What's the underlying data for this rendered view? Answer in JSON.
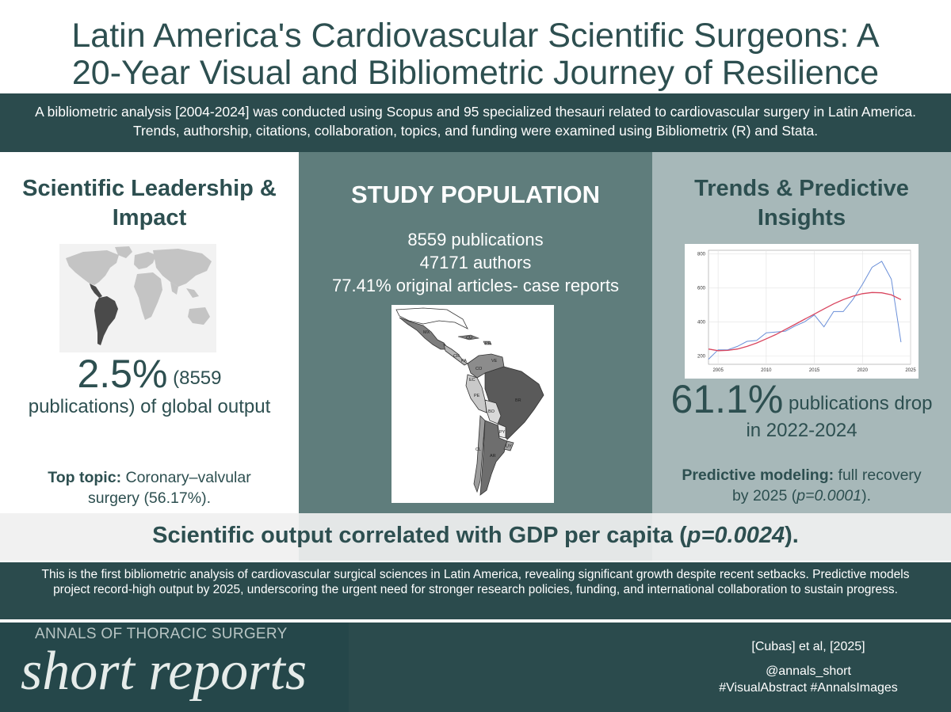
{
  "title": {
    "line1": "Latin America's Cardiovascular Scientific Surgeons: A",
    "line2": "20-Year Visual and Bibliometric Journey of Resilience"
  },
  "intro": "A bibliometric analysis [2004-2024] was conducted using Scopus and 95 specialized thesauri related to cardiovascular surgery in Latin America. Trends, authorship, citations, collaboration, topics, and funding were examined using Bibliometrix (R) and Stata.",
  "left": {
    "heading": "Scientific Leadership & Impact",
    "stat_number": "2.5%",
    "stat_text": " (8559 publications) of global output",
    "topic_label": "Top topic:",
    "topic_text": " Coronary–valvular surgery (56.17%)."
  },
  "middle": {
    "heading": "STUDY POPULATION",
    "line1": "8559 publications",
    "line2": "47171 authors",
    "line3": "77.41% original articles- case reports",
    "map_labels": [
      "MX",
      "CU",
      "PR",
      "CR",
      "PA",
      "VE",
      "CO",
      "EC",
      "PE",
      "BR",
      "BO",
      "PY",
      "UY",
      "AR",
      "CL"
    ]
  },
  "right": {
    "heading": "Trends & Predictive Insights",
    "stat_number": "61.1%",
    "stat_text": " publications drop in 2022-2024",
    "model_label": "Predictive modeling:",
    "model_text_pre": " full recovery by 2025 (",
    "model_p": "p=0.0001",
    "model_text_post": ")."
  },
  "band": {
    "text_pre": "Scientific output correlated with GDP per capita (",
    "p_value": "p=0.0024",
    "text_post": ")."
  },
  "conclusion": "This is the first bibliometric analysis of cardiovascular surgical sciences in Latin America, revealing significant growth despite recent setbacks. Predictive models project record-high output by 2025, underscoring the urgent need for stronger research policies, funding, and international collaboration to sustain progress.",
  "footer": {
    "journal_top": "ANNALS OF THORACIC SURGERY",
    "journal_main": "short reports",
    "citation": "[Cubas] et al, [2025]",
    "handle": "@annals_short",
    "hashtags": "#VisualAbstract #AnnalsImages"
  },
  "colors": {
    "dark_teal": "#2b4b4d",
    "mid_teal": "#5f7d7c",
    "light_teal": "#a7b8b9",
    "text_teal": "#2d4f50",
    "observed_line": "#6a8fd8",
    "fitted_line": "#d9465f"
  },
  "chart_data": {
    "type": "line",
    "x_ticks": [
      2005,
      2010,
      2015,
      2020,
      2025
    ],
    "y_ticks": [
      200,
      400,
      600,
      800
    ],
    "xlim": [
      2004,
      2025
    ],
    "ylim": [
      150,
      820
    ],
    "series": [
      {
        "x": [
          2004,
          2005,
          2006,
          2007,
          2008,
          2009,
          2010,
          2011,
          2012,
          2013,
          2014,
          2015,
          2016,
          2017,
          2018,
          2019,
          2020,
          2021,
          2022,
          2023,
          2024
        ],
        "values": [
          180,
          235,
          235,
          255,
          285,
          290,
          335,
          340,
          345,
          375,
          400,
          440,
          370,
          460,
          460,
          530,
          620,
          720,
          755,
          650,
          280
        ]
      },
      {
        "x": [
          2004,
          2005,
          2006,
          2007,
          2008,
          2009,
          2010,
          2011,
          2012,
          2013,
          2014,
          2015,
          2016,
          2017,
          2018,
          2019,
          2020,
          2021,
          2022,
          2023,
          2024
        ],
        "values": [
          240,
          230,
          232,
          240,
          255,
          275,
          300,
          325,
          355,
          385,
          415,
          445,
          475,
          505,
          530,
          550,
          565,
          572,
          570,
          558,
          530
        ]
      }
    ]
  }
}
